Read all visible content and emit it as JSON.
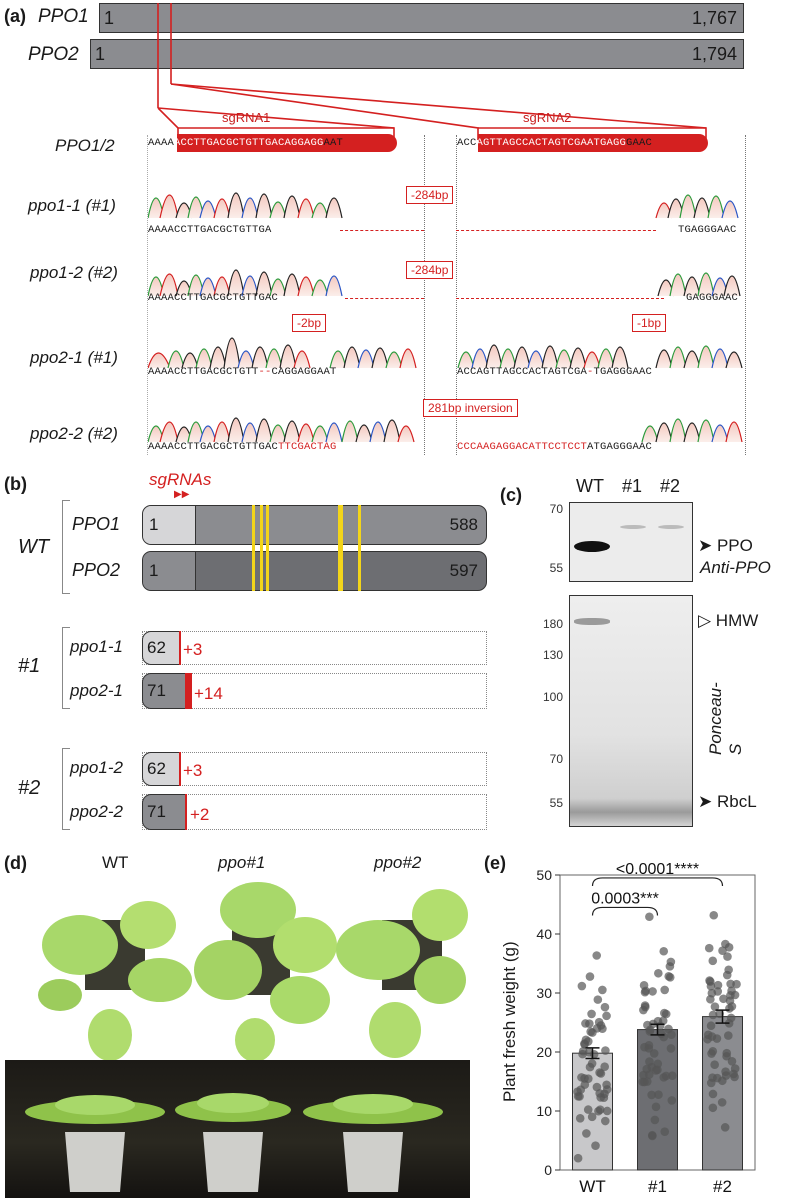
{
  "panel_a": {
    "label": "(a)",
    "genes": [
      {
        "name": "PPO1",
        "start": "1",
        "end": "1,767"
      },
      {
        "name": "PPO2",
        "start": "1",
        "end": "1,794"
      }
    ],
    "sgRNA1_label": "sgRNA1",
    "sgRNA2_label": "sgRNA2",
    "rows": [
      {
        "name": "PPO1/2",
        "left_seq_pre": "AAAA",
        "left_seq_sg": "ACCTTGACGCTGTTGACAGGAGG",
        "left_seq_post": "AAT",
        "right_seq_pre": "ACC",
        "right_seq_sg": "AGTTAGCCACTAGTCGAATGAGG",
        "right_seq_post": "GAAC"
      },
      {
        "name": "ppo1-1 (#1)",
        "left_seq": "AAAACCTTGACGCTGTTGA",
        "right_seq": "TGAGGGAAC",
        "box": "-284bp"
      },
      {
        "name": "ppo1-2 (#2)",
        "left_seq": "AAAACCTTGACGCTGTTGAC",
        "right_seq": "GAGGGAAC",
        "box": "-284bp"
      },
      {
        "name": "ppo2-1 (#1)",
        "left_seq_a": "AAAACCTTGACGCTGTT",
        "left_seq_b": "CAGGAGGAAT",
        "right_seq_a": "ACCAGTTAGCCACTAGTCGA",
        "right_seq_b": "TGAGGGAAC",
        "box_left": "-2bp",
        "box_right": "-1bp"
      },
      {
        "name": "ppo2-2 (#2)",
        "left_seq_black": "AAAACCTTGACGCTGTTGAC",
        "left_seq_red": "TTCGACTAG",
        "right_seq_red": "CCCAAGAGGACATTCCTCCT",
        "right_seq_black": "ATGAGGGAAC",
        "box": "281bp inversion"
      }
    ]
  },
  "panel_b": {
    "label": "(b)",
    "sgrnas_label": "sgRNAs",
    "groups": [
      {
        "label": "WT",
        "proteins": [
          {
            "name": "PPO1",
            "start": "1",
            "end": "588"
          },
          {
            "name": "PPO2",
            "start": "1",
            "end": "597"
          }
        ]
      },
      {
        "label": "#1",
        "proteins": [
          {
            "name": "ppo1-1",
            "length": "62",
            "mutation": "+3"
          },
          {
            "name": "ppo2-1",
            "length": "71",
            "mutation": "+14"
          }
        ]
      },
      {
        "label": "#2",
        "proteins": [
          {
            "name": "ppo1-2",
            "length": "62",
            "mutation": "+3"
          },
          {
            "name": "ppo2-2",
            "length": "71",
            "mutation": "+2"
          }
        ]
      }
    ]
  },
  "panel_c": {
    "label": "(c)",
    "lanes": [
      "WT",
      "#1",
      "#2"
    ],
    "top_markers": [
      "70",
      "55"
    ],
    "top_labels": {
      "band": "PPO",
      "antibody": "Anti-PPO"
    },
    "bottom_markers": [
      "180",
      "130",
      "100",
      "70",
      "55"
    ],
    "bottom_labels": {
      "hmw": "HMW",
      "stain": "Ponceau-S",
      "rbcl": "RbcL"
    }
  },
  "panel_d": {
    "label": "(d)",
    "plants": [
      "WT",
      "ppo#1",
      "ppo#2"
    ]
  },
  "panel_e": {
    "label": "(e)",
    "chart_data": {
      "type": "bar",
      "categories": [
        "WT",
        "#1",
        "#2"
      ],
      "values": [
        19.8,
        23.8,
        26.0
      ],
      "sem": [
        0.9,
        0.9,
        1.1
      ],
      "ylabel": "Plant fresh weight (g)",
      "ylim": [
        0,
        50
      ],
      "yticks": [
        "0",
        "10",
        "20",
        "30",
        "40",
        "50"
      ],
      "bar_colors": [
        "#c8c8ca",
        "#6d6e72",
        "#8b8c90"
      ],
      "significance": [
        {
          "from": "WT",
          "to": "#1",
          "label": "0.0003***"
        },
        {
          "from": "WT",
          "to": "#2",
          "label": "<0.0001****"
        }
      ]
    }
  }
}
